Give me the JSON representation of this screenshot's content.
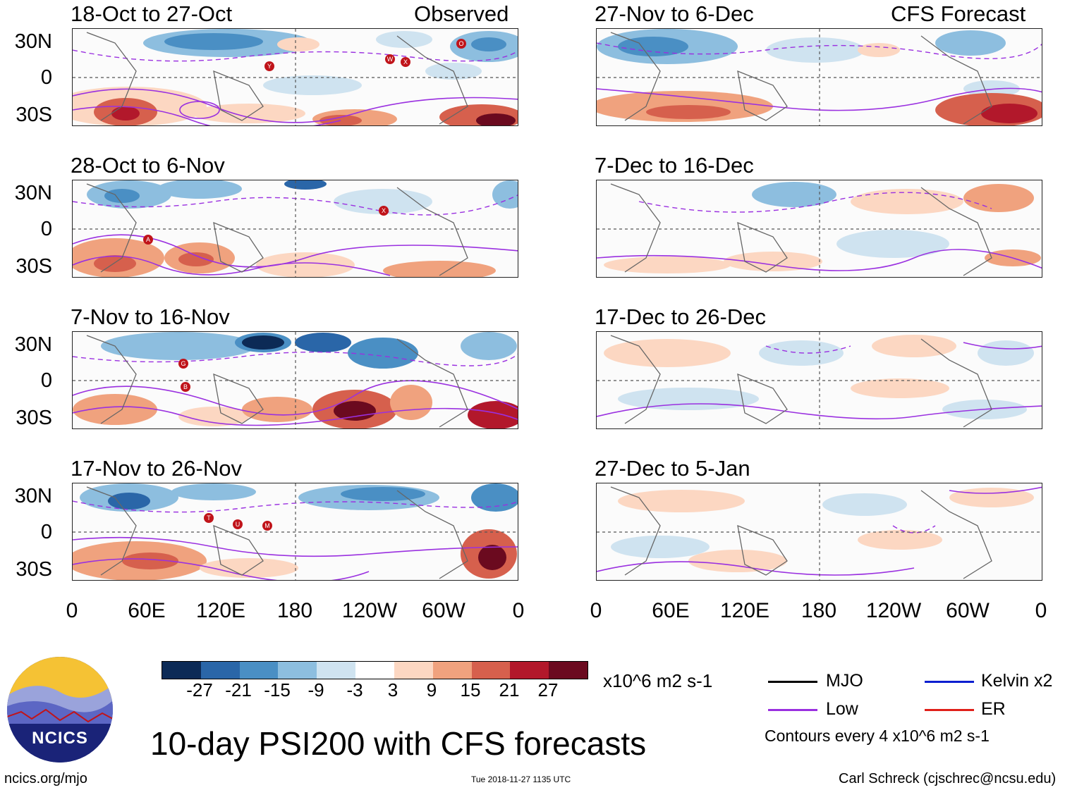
{
  "left_column_label": "Observed",
  "right_column_label": "CFS Forecast",
  "y_tick_labels": [
    "30N",
    "0",
    "30S"
  ],
  "x_tick_labels": [
    "0",
    "60E",
    "120E",
    "180",
    "120W",
    "60W",
    "0"
  ],
  "panels_left": [
    {
      "title": "18-Oct to 27-Oct",
      "storms": [
        "Y",
        "W",
        "X",
        "O"
      ]
    },
    {
      "title": "28-Oct to 6-Nov",
      "storms": [
        "A",
        "X"
      ]
    },
    {
      "title": "7-Nov to 16-Nov",
      "storms": [
        "G",
        "B"
      ]
    },
    {
      "title": "17-Nov to 26-Nov",
      "storms": [
        "T",
        "U",
        "M"
      ]
    }
  ],
  "panels_right": [
    {
      "title": "27-Nov to 6-Dec"
    },
    {
      "title": "7-Dec to 16-Dec"
    },
    {
      "title": "17-Dec to 26-Dec"
    },
    {
      "title": "27-Dec to 5-Jan"
    }
  ],
  "colorbar": {
    "ticks": [
      "-27",
      "-21",
      "-15",
      "-9",
      "-3",
      "3",
      "9",
      "15",
      "21",
      "27"
    ],
    "colors": [
      "#0c2a56",
      "#2a66a8",
      "#4a8fc4",
      "#8dbedf",
      "#cfe3f0",
      "#ffffff",
      "#fcd7c2",
      "#f0a27e",
      "#d6604d",
      "#b2182b",
      "#6b0a1f"
    ],
    "units": "x10^6 m2 s-1"
  },
  "legend": {
    "items": [
      {
        "label": "MJO",
        "color": "#000000"
      },
      {
        "label": "Kelvin x2",
        "color": "#0b1fd0"
      },
      {
        "label": "Low",
        "color": "#9a30e0"
      },
      {
        "label": "ER",
        "color": "#e0201a"
      }
    ],
    "contour_note": "Contours every 4 x10^6 m2 s-1"
  },
  "main_title": "10-day PSI200 with CFS forecasts",
  "logo_text": "NCICS",
  "footer": {
    "left": "ncics.org/mjo",
    "center": "Tue 2018-11-27 1135 UTC",
    "right": "Carl Schreck (cjschrec@ncsu.edu)"
  }
}
